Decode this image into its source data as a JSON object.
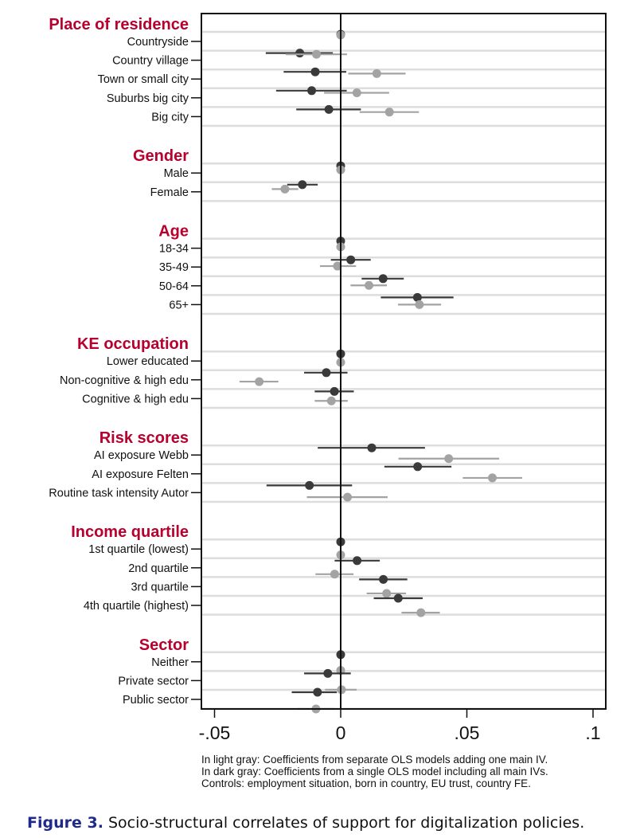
{
  "chart_data": {
    "type": "coefficient-plot",
    "xlim": [
      -0.055,
      0.105
    ],
    "xticks": [
      -0.05,
      0,
      0.05,
      0.1
    ],
    "xtick_labels": [
      "-.05",
      "0",
      ".05",
      ".1"
    ],
    "reference_line": 0,
    "grid": true,
    "colors": {
      "dark": "#3a3a3a",
      "light": "#a3a3a3",
      "header": "#b8002e",
      "caption_label": "#1f2a8a",
      "grid": "#dddddd"
    },
    "sections": [
      {
        "title": "Place of residence",
        "rows": [
          {
            "label": "Countryside",
            "dark": [
              0,
              null,
              null
            ],
            "light": [
              0,
              null,
              null
            ]
          },
          {
            "label": "Country village",
            "dark": [
              -0.0162,
              -0.0297,
              -0.0031
            ],
            "light": [
              -0.0096,
              -0.0218,
              0.0025
            ]
          },
          {
            "label": "Town or small city",
            "dark": [
              -0.0101,
              -0.0226,
              0.0022
            ],
            "light": [
              0.0143,
              0.003,
              0.0257
            ]
          },
          {
            "label": "Suburbs big city",
            "dark": [
              -0.0115,
              -0.0256,
              0.0024
            ],
            "light": [
              0.0064,
              -0.0066,
              0.0192
            ]
          },
          {
            "label": "Big city",
            "dark": [
              -0.0047,
              -0.0176,
              0.008
            ],
            "light": [
              0.0193,
              0.0075,
              0.031
            ]
          }
        ]
      },
      {
        "title": "Gender",
        "rows": [
          {
            "label": "Male",
            "dark": [
              0,
              null,
              null
            ],
            "light": [
              0,
              null,
              null
            ]
          },
          {
            "label": "Female",
            "dark": [
              -0.0152,
              -0.0212,
              -0.0091
            ],
            "light": [
              -0.0221,
              -0.0273,
              -0.0168
            ]
          }
        ]
      },
      {
        "title": "Age",
        "rows": [
          {
            "label": "18-34",
            "dark": [
              0,
              null,
              null
            ],
            "light": [
              0,
              null,
              null
            ]
          },
          {
            "label": "35-49",
            "dark": [
              0.004,
              -0.0039,
              0.0119
            ],
            "light": [
              -0.0013,
              -0.0082,
              0.0061
            ]
          },
          {
            "label": "50-64",
            "dark": [
              0.0168,
              0.0083,
              0.025
            ],
            "light": [
              0.0112,
              0.0039,
              0.0183
            ]
          },
          {
            "label": "65+",
            "dark": [
              0.0304,
              0.0159,
              0.0447
            ],
            "light": [
              0.0312,
              0.0227,
              0.0398
            ]
          }
        ]
      },
      {
        "title": "KE occupation",
        "rows": [
          {
            "label": "Lower educated",
            "dark": [
              0,
              null,
              null
            ],
            "light": [
              0,
              null,
              null
            ]
          },
          {
            "label": "Non-cognitive & high edu",
            "dark": [
              -0.0057,
              -0.0145,
              0.0027
            ],
            "light": [
              -0.0323,
              -0.0401,
              -0.0247
            ]
          },
          {
            "label": "Cognitive & high edu",
            "dark": [
              -0.0025,
              -0.0103,
              0.0052
            ],
            "light": [
              -0.0037,
              -0.0103,
              0.0028
            ]
          }
        ]
      },
      {
        "title": "Risk scores",
        "rows": [
          {
            "label": "AI exposure Webb",
            "dark": [
              0.0123,
              -0.0091,
              0.0334
            ],
            "light": [
              0.0428,
              0.0229,
              0.0628
            ]
          },
          {
            "label": "AI  exposure Felten",
            "dark": [
              0.0305,
              0.0173,
              0.0439
            ],
            "light": [
              0.0601,
              0.0484,
              0.0719
            ]
          },
          {
            "label": "Routine task intensity Autor",
            "dark": [
              -0.0124,
              -0.0294,
              0.0045
            ],
            "light": [
              0.0027,
              -0.0134,
              0.0186
            ]
          }
        ]
      },
      {
        "title": "Income quartile",
        "rows": [
          {
            "label": "1st quartile (lowest)",
            "dark": [
              0,
              null,
              null
            ],
            "light": [
              0,
              null,
              null
            ]
          },
          {
            "label": "2nd quartile",
            "dark": [
              0.0065,
              -0.0024,
              0.0155
            ],
            "light": [
              -0.0024,
              -0.01,
              0.0051
            ]
          },
          {
            "label": "3rd quartile",
            "dark": [
              0.0169,
              0.0073,
              0.0264
            ],
            "light": [
              0.0182,
              0.0103,
              0.0259
            ]
          },
          {
            "label": "4th quartile (highest)",
            "dark": [
              0.0228,
              0.0131,
              0.0325
            ],
            "light": [
              0.0318,
              0.0241,
              0.0393
            ]
          }
        ]
      },
      {
        "title": "Sector",
        "rows": [
          {
            "label": "Neither",
            "dark": [
              0,
              null,
              null
            ],
            "light": [
              0,
              null,
              null
            ]
          },
          {
            "label": "Private sector",
            "dark": [
              -0.0051,
              -0.0145,
              0.004
            ],
            "light": [
              0.0003,
              -0.0062,
              0.0063
            ]
          },
          {
            "label": "Public sector",
            "dark": [
              -0.0092,
              -0.0194,
              -0.0015
            ],
            "light": [
              -0.0098,
              -0.0173,
              -0.0025
            ]
          }
        ]
      }
    ],
    "notes": [
      "In light gray: Coefficients from separate OLS models adding one main IV.",
      "In dark gray: Coefficients from a single OLS model including all main IVs.",
      "Controls:  employment situation, born in country, EU trust, country FE."
    ]
  },
  "caption": {
    "label": "Figure 3.",
    "text": " Socio-structural correlates of support for digitalization policies."
  }
}
